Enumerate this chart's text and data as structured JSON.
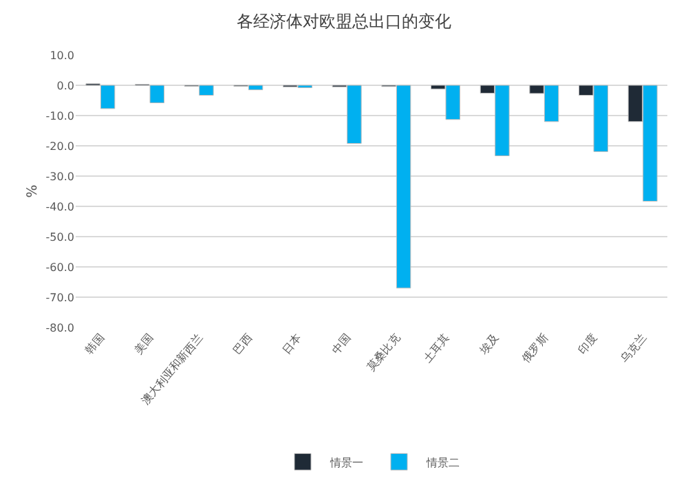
{
  "chart_data": {
    "type": "bar",
    "title": "各经济体对欧盟总出口的变化",
    "ylabel": "%",
    "categories": [
      "韩国",
      "美国",
      "澳大利亚和新西兰",
      "巴西",
      "日本",
      "中国",
      "莫桑比克",
      "土耳其",
      "埃及",
      "俄罗斯",
      "印度",
      "乌克兰"
    ],
    "series": [
      {
        "name": "情景一",
        "color": "#1f2a36",
        "values": [
          0.5,
          0.3,
          -0.3,
          -0.3,
          -0.5,
          -0.5,
          -0.4,
          -1.2,
          -2.6,
          -2.7,
          -3.3,
          -12.0
        ]
      },
      {
        "name": "情景二",
        "color": "#00b0f0",
        "values": [
          -7.7,
          -5.8,
          -3.3,
          -1.5,
          -0.8,
          -19.2,
          -67.0,
          -11.3,
          -23.3,
          -12.0,
          -21.9,
          -38.3
        ]
      }
    ],
    "ylim": [
      -80,
      10
    ],
    "yticks": [
      {
        "value": 10,
        "label": "10.0"
      },
      {
        "value": 0,
        "label": "0.0"
      },
      {
        "value": -10,
        "label": "-10.0"
      },
      {
        "value": -20,
        "label": "-20.0"
      },
      {
        "value": -30,
        "label": "-30.0"
      },
      {
        "value": -40,
        "label": "-40.0"
      },
      {
        "value": -50,
        "label": "-50.0"
      },
      {
        "value": -60,
        "label": "-60.0"
      },
      {
        "value": -70,
        "label": "-70.0"
      },
      {
        "value": -80,
        "label": "-80.0"
      }
    ],
    "grid": "y",
    "legend": "bottom"
  }
}
